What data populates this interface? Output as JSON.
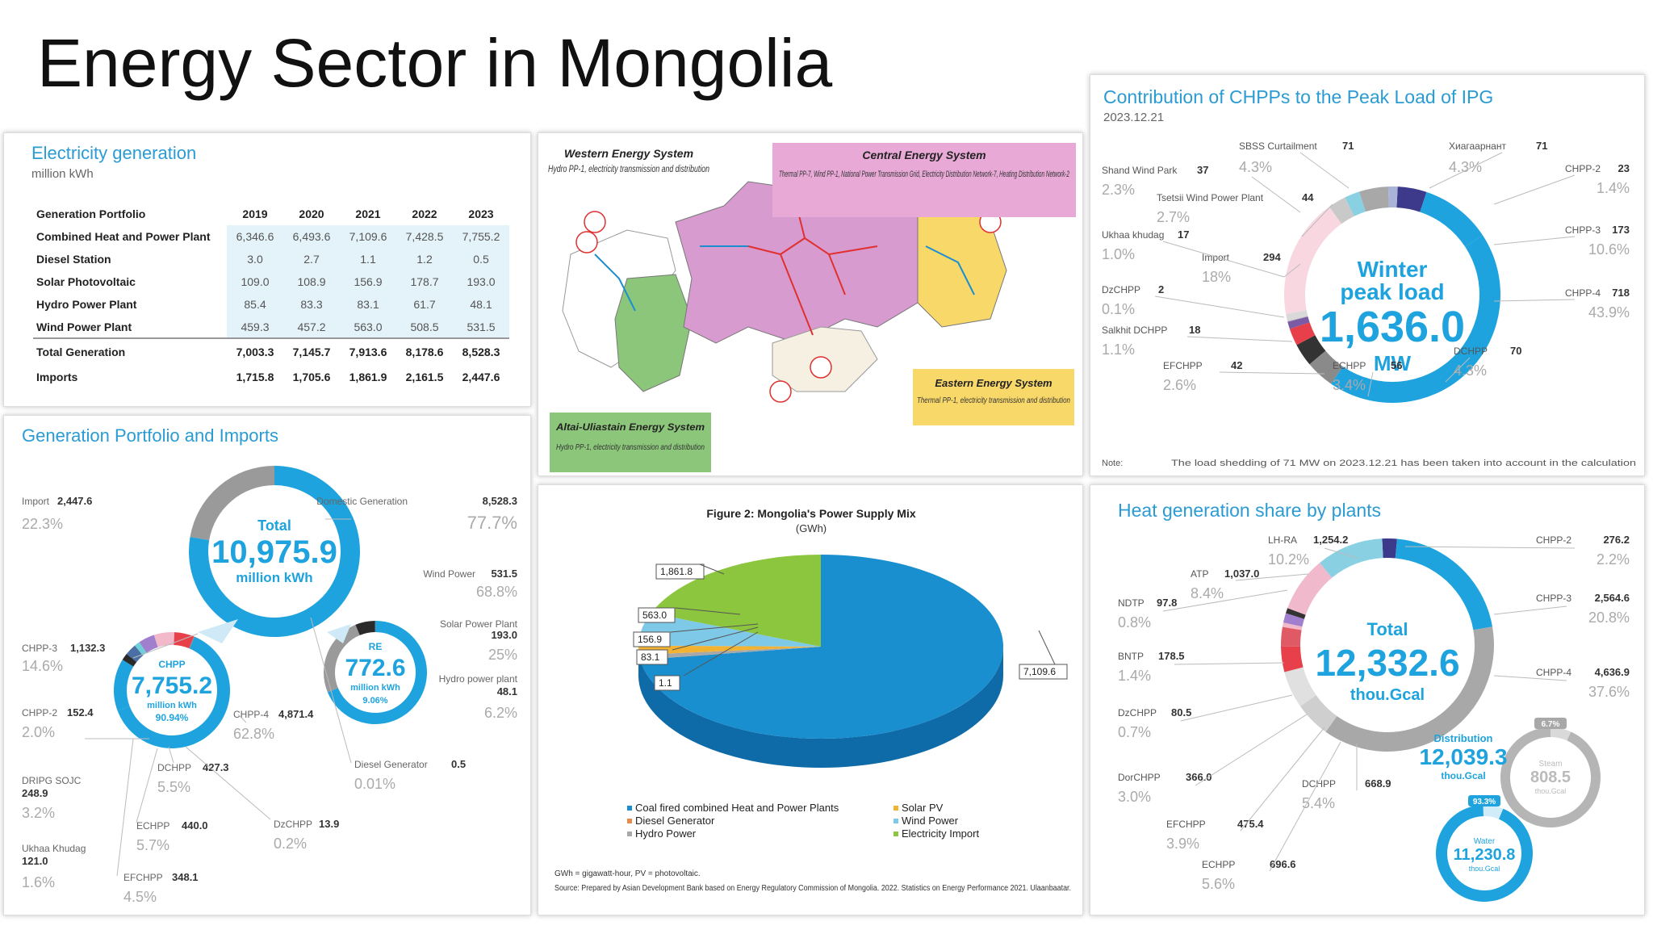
{
  "slide": {
    "title": "Energy Sector in Mongolia"
  },
  "colors": {
    "accent": "#1ea3de",
    "dark": "#2a2a2a",
    "gray": "#9a9a9a",
    "purple": "#5b3a9e",
    "red": "#e8404a",
    "pink": "#f1b9c9",
    "teal": "#6fcfd8",
    "green": "#8cc63e",
    "yellow": "#f2b232"
  },
  "electricity_generation": {
    "title": "Electricity generation",
    "unit": "million kWh",
    "header": "Generation Portfolio",
    "years": [
      "2019",
      "2020",
      "2021",
      "2022",
      "2023"
    ],
    "rows": [
      {
        "label": "Combined Heat and Power Plant",
        "values": [
          "6,346.6",
          "6,493.6",
          "7,109.6",
          "7,428.5",
          "7,755.2"
        ]
      },
      {
        "label": "Diesel Station",
        "values": [
          "3.0",
          "2.7",
          "1.1",
          "1.2",
          "0.5"
        ]
      },
      {
        "label": "Solar Photovoltaic",
        "values": [
          "109.0",
          "108.9",
          "156.9",
          "178.7",
          "193.0"
        ]
      },
      {
        "label": "Hydro Power Plant",
        "values": [
          "85.4",
          "83.3",
          "83.1",
          "61.7",
          "48.1"
        ]
      },
      {
        "label": "Wind Power Plant",
        "values": [
          "459.3",
          "457.2",
          "563.0",
          "508.5",
          "531.5"
        ]
      }
    ],
    "total": {
      "label": "Total Generation",
      "values": [
        "7,003.3",
        "7,145.7",
        "7,913.6",
        "8,178.6",
        "8,528.3"
      ]
    },
    "imports": {
      "label": "Imports",
      "values": [
        "1,715.8",
        "1,705.6",
        "1,861.9",
        "2,161.5",
        "2,447.6"
      ]
    }
  },
  "portfolio_imports": {
    "title": "Generation Portfolio and Imports",
    "total": {
      "label": "Total",
      "value": "10,975.9",
      "unit": "million kWh"
    },
    "import": {
      "label": "Import",
      "value": "2,447.6",
      "pct": "22.3%"
    },
    "domestic": {
      "label": "Domestic Generation",
      "value": "8,528.3",
      "pct": "77.7%"
    },
    "chpp": {
      "label": "CHPP",
      "value": "7,755.2",
      "unit": "million kWh",
      "pct": "90.94%"
    },
    "re": {
      "label": "RE",
      "value": "772.6",
      "unit": "million kWh",
      "pct": "9.06%"
    },
    "wind": {
      "label": "Wind Power",
      "value": "531.5",
      "pct": "68.8%"
    },
    "solar": {
      "label": "Solar Power Plant",
      "value": "193.0",
      "pct": "25%"
    },
    "hydro": {
      "label": "Hydro power plant",
      "value": "48.1",
      "pct": "6.2%"
    },
    "diesel": {
      "label": "Diesel Generator",
      "value": "0.5",
      "pct": "0.01%"
    },
    "chpp3": {
      "label": "CHPP-3",
      "value": "1,132.3",
      "pct": "14.6%"
    },
    "chpp2": {
      "label": "CHPP-2",
      "value": "152.4",
      "pct": "2.0%"
    },
    "chpp4": {
      "label": "CHPP-4",
      "value": "4,871.4",
      "pct": "62.8%"
    },
    "dripg": {
      "label": "DRIPG SOJC",
      "value": "248.9",
      "pct": "3.2%"
    },
    "dchpp": {
      "label": "DCHPP",
      "value": "427.3",
      "pct": "5.5%"
    },
    "echpp": {
      "label": "ECHPP",
      "value": "440.0",
      "pct": "5.7%"
    },
    "dzchpp": {
      "label": "DzCHPP",
      "value": "13.9",
      "pct": "0.2%"
    },
    "ukhaa": {
      "label": "Ukhaa Khudag",
      "value": "121.0",
      "pct": "1.6%"
    },
    "efchpp": {
      "label": "EFCHPP",
      "value": "348.1",
      "pct": "4.5%"
    }
  },
  "map": {
    "western": {
      "title": "Western Energy System",
      "desc": "Hydro PP-1, electricity transmission and distribution"
    },
    "central": {
      "title": "Central Energy System",
      "desc": "Thermal PP-7, Wind PP-1, National Power Transmission Grid, Electricity Distribution Network-7, Heating Distribution Network-2"
    },
    "eastern": {
      "title": "Eastern Energy System",
      "desc": "Thermal PP-1, electricity transmission and distribution"
    },
    "altai": {
      "title": "Altai-Uliastain Energy System",
      "desc": "Hydro PP-1, electricity transmission and distribution"
    }
  },
  "power_supply_mix": {
    "title": "Figure 2: Mongolia's Power Supply Mix",
    "unit": "(GWh)",
    "legend": [
      {
        "label": "Coal fired combined Heat and Power Plants",
        "color": "#1a8fd0"
      },
      {
        "label": "Diesel Generator",
        "color": "#e9894a"
      },
      {
        "label": "Hydro Power",
        "color": "#a8a8a8"
      },
      {
        "label": "Solar PV",
        "color": "#f2b232"
      },
      {
        "label": "Wind Power",
        "color": "#7ec8e8"
      },
      {
        "label": "Electricity Import",
        "color": "#8cc63e"
      }
    ],
    "note": "GWh = gigawatt-hour, PV = photovoltaic.",
    "source": "Source: Prepared by Asian Development Bank based on Energy Regulatory Commission of Mongolia. 2022. Statistics on Energy Performance 2021. Ulaanbaatar."
  },
  "chpp_peak": {
    "title": "Contribution of CHPPs to the Peak Load of IPG",
    "date": "2023.12.21",
    "center": {
      "line1": "Winter",
      "line2": "peak load",
      "value": "1,636.0",
      "unit": "MW"
    },
    "items": {
      "sbss": {
        "label": "SBSS Curtailment",
        "value": "71",
        "pct": "4.3%"
      },
      "khiagraapnt": {
        "label": "Хиагаарнант",
        "value": "71",
        "pct": "4.3%"
      },
      "chpp2": {
        "label": "CHPP-2",
        "value": "23",
        "pct": "1.4%"
      },
      "shand": {
        "label": "Shand Wind Park",
        "value": "37",
        "pct": "2.3%"
      },
      "tsetsii": {
        "label": "Tsetsii Wind Power Plant",
        "value": "44",
        "pct": "2.7%"
      },
      "chpp3": {
        "label": "CHPP-3",
        "value": "173",
        "pct": "10.6%"
      },
      "ukhaa": {
        "label": "Ukhaa khudag",
        "value": "17",
        "pct": "1.0%"
      },
      "import": {
        "label": "Import",
        "value": "294",
        "pct": "18%"
      },
      "dzchpp": {
        "label": "DzCHPP",
        "value": "2",
        "pct": "0.1%"
      },
      "chpp4": {
        "label": "CHPP-4",
        "value": "718",
        "pct": "43.9%"
      },
      "salkhit": {
        "label": "Salkhit DCHPP",
        "value": "18",
        "pct": "1.1%"
      },
      "dchpp": {
        "label": "DCHPP",
        "value": "70",
        "pct": "4.3%"
      },
      "efchpp": {
        "label": "EFCHPP",
        "value": "42",
        "pct": "2.6%"
      },
      "echpp": {
        "label": "ECHPP",
        "value": "56",
        "pct": "3.4%"
      }
    },
    "note_label": "Note:",
    "note_text": "The load shedding of 71 MW on 2023.12.21 has been taken into account in the calculation"
  },
  "heat_share": {
    "title": "Heat generation share by plants",
    "total": {
      "label": "Total",
      "value": "12,332.6",
      "unit": "thou.Gcal"
    },
    "items": {
      "lhra": {
        "label": "LH-RA",
        "value": "1,254.2",
        "pct": "10.2%"
      },
      "chpp2": {
        "label": "CHPP-2",
        "value": "276.2",
        "pct": "2.2%"
      },
      "atp": {
        "label": "ATP",
        "value": "1,037.0",
        "pct": "8.4%"
      },
      "ndtp": {
        "label": "NDTP",
        "value": "97.8",
        "pct": "0.8%"
      },
      "chpp3": {
        "label": "CHPP-3",
        "value": "2,564.6",
        "pct": "20.8%"
      },
      "bntp": {
        "label": "BNTP",
        "value": "178.5",
        "pct": "1.4%"
      },
      "chpp4": {
        "label": "CHPP-4",
        "value": "4,636.9",
        "pct": "37.6%"
      },
      "dzchpp": {
        "label": "DzCHPP",
        "value": "80.5",
        "pct": "0.7%"
      },
      "dorchpp": {
        "label": "DorCHPP",
        "value": "366.0",
        "pct": "3.0%"
      },
      "dchpp": {
        "label": "DCHPP",
        "value": "668.9",
        "pct": "5.4%"
      },
      "efchpp": {
        "label": "EFCHPP",
        "value": "475.4",
        "pct": "3.9%"
      },
      "echpp": {
        "label": "ECHPP",
        "value": "696.6",
        "pct": "5.6%"
      }
    },
    "distribution": {
      "label": "Distribution",
      "value": "12,039.3",
      "unit": "thou.Gcal"
    },
    "steam": {
      "label": "Steam",
      "value": "808.5",
      "unit": "thou.Gcal",
      "pct": "6.7%"
    },
    "water": {
      "label": "Water",
      "value": "11,230.8",
      "unit": "thou.Gcal",
      "pct": "93.3%"
    }
  },
  "chart_data": [
    {
      "type": "table",
      "title": "Electricity generation",
      "unit": "million kWh",
      "columns": [
        "2019",
        "2020",
        "2021",
        "2022",
        "2023"
      ],
      "rows": [
        {
          "name": "Combined Heat and Power Plant",
          "values": [
            6346.6,
            6493.6,
            7109.6,
            7428.5,
            7755.2
          ]
        },
        {
          "name": "Diesel Station",
          "values": [
            3.0,
            2.7,
            1.1,
            1.2,
            0.5
          ]
        },
        {
          "name": "Solar Photovoltaic",
          "values": [
            109.0,
            108.9,
            156.9,
            178.7,
            193.0
          ]
        },
        {
          "name": "Hydro Power Plant",
          "values": [
            85.4,
            83.3,
            83.1,
            61.7,
            48.1
          ]
        },
        {
          "name": "Wind Power Plant",
          "values": [
            459.3,
            457.2,
            563.0,
            508.5,
            531.5
          ]
        },
        {
          "name": "Total Generation",
          "values": [
            7003.3,
            7145.7,
            7913.6,
            8178.6,
            8528.3
          ]
        },
        {
          "name": "Imports",
          "values": [
            1715.8,
            1705.6,
            1861.9,
            2161.5,
            2447.6
          ]
        }
      ]
    },
    {
      "type": "pie",
      "title": "Generation Portfolio and Imports",
      "categories": [
        "Import",
        "Domestic Generation"
      ],
      "values": [
        2447.6,
        8528.3
      ]
    },
    {
      "type": "pie",
      "title": "Figure 2: Mongolia's Power Supply Mix",
      "unit": "GWh",
      "categories": [
        "Coal fired combined Heat and Power Plants",
        "Diesel Generator",
        "Hydro Power",
        "Solar PV",
        "Wind Power",
        "Electricity Import"
      ],
      "values": [
        7109.6,
        1.1,
        83.1,
        156.9,
        563.0,
        1861.8
      ]
    },
    {
      "type": "pie",
      "title": "Contribution of CHPPs to the Peak Load of IPG",
      "unit": "MW",
      "categories": [
        "CHPP-4",
        "Import",
        "CHPP-3",
        "SBSS Curtailment",
        "Хиагаарнант",
        "DCHPP",
        "ECHPP",
        "Tsetsii Wind Power Plant",
        "EFCHPP",
        "Shand Wind Park",
        "CHPP-2",
        "Salkhit DCHPP",
        "Ukhaa khudag",
        "DzCHPP"
      ],
      "values": [
        718,
        294,
        173,
        71,
        71,
        70,
        56,
        44,
        42,
        37,
        23,
        18,
        17,
        2
      ]
    },
    {
      "type": "pie",
      "title": "Heat generation share by plants",
      "unit": "thou.Gcal",
      "categories": [
        "CHPP-4",
        "CHPP-3",
        "LH-RA",
        "ATP",
        "ECHPP",
        "DCHPP",
        "EFCHPP",
        "DorCHPP",
        "CHPP-2",
        "BNTP",
        "NDTP",
        "DzCHPP"
      ],
      "values": [
        4636.9,
        2564.6,
        1254.2,
        1037.0,
        696.6,
        668.9,
        475.4,
        366.0,
        276.2,
        178.5,
        97.8,
        80.5
      ]
    }
  ]
}
